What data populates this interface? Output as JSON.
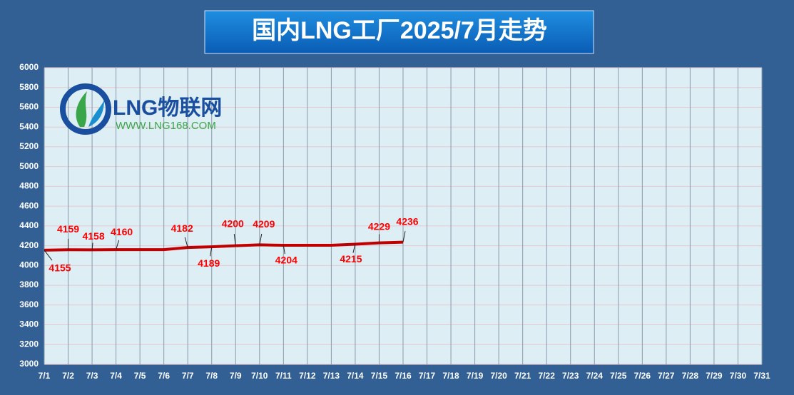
{
  "chart_data": {
    "type": "line",
    "title": "国内LNG工厂2025/7月走势",
    "categories": [
      "7/1",
      "7/2",
      "7/3",
      "7/4",
      "7/5",
      "7/6",
      "7/7",
      "7/8",
      "7/9",
      "7/10",
      "7/11",
      "7/12",
      "7/13",
      "7/14",
      "7/15",
      "7/16",
      "7/17",
      "7/18",
      "7/19",
      "7/20",
      "7/21",
      "7/22",
      "7/23",
      "7/24",
      "7/25",
      "7/26",
      "7/27",
      "7/28",
      "7/29",
      "7/30",
      "7/31"
    ],
    "series": [
      {
        "name": "LNG",
        "color": "#c00000",
        "values": [
          4155,
          4159,
          4158,
          4160,
          4160,
          4160,
          4182,
          4189,
          4200,
          4209,
          4204,
          4204,
          4204,
          4215,
          4229,
          4236,
          null,
          null,
          null,
          null,
          null,
          null,
          null,
          null,
          null,
          null,
          null,
          null,
          null,
          null,
          null
        ],
        "value_labels": [
          "4155",
          "4159",
          "4158",
          "4160",
          null,
          null,
          "4182",
          "4189",
          "4200",
          "4209",
          "4204",
          null,
          null,
          "4215",
          "4229",
          "4236",
          null,
          null,
          null,
          null,
          null,
          null,
          null,
          null,
          null,
          null,
          null,
          null,
          null,
          null,
          null
        ]
      }
    ],
    "ylim": [
      3000,
      6000
    ],
    "yticks": [
      3000,
      3200,
      3400,
      3600,
      3800,
      4000,
      4200,
      4400,
      4600,
      4800,
      5000,
      5200,
      5400,
      5600,
      5800,
      6000
    ],
    "grid": true
  },
  "logo": {
    "text": "LNG物联网",
    "url": "WWW.LNG168.COM"
  }
}
